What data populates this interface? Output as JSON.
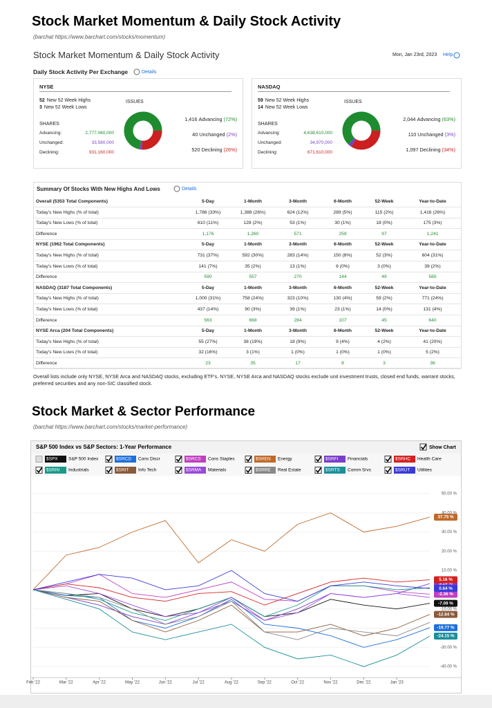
{
  "header": {
    "title": "Stock Market Momentum & Daily Stock Activity",
    "source": "(barchat https://www.barchart.com/stocks/momentum)"
  },
  "momentum": {
    "title": "Stock Market Momentum & Daily Stock Activity",
    "date": "Mon, Jan 23rd, 2023",
    "help": "Help",
    "exchange_heading": "Daily Stock Activity Per Exchange",
    "details": "Details"
  },
  "exchanges": [
    {
      "name": "NYSE",
      "highs": {
        "count": "52",
        "label": "New 52 Week Highs"
      },
      "lows": {
        "count": "3",
        "label": "New 52 Week Lows"
      },
      "shares_heading": "SHARES",
      "issues_heading": "ISSUES",
      "shares": [
        {
          "label": "Advancing:",
          "value": "2,777,060,000",
          "color": "#1e8c2e"
        },
        {
          "label": "Unchanged:",
          "value": "33,580,000",
          "color": "#7a3fbf"
        },
        {
          "label": "Declining:",
          "value": "931,160,000",
          "color": "#cc1f1f"
        }
      ],
      "issues": [
        {
          "count": "1,416",
          "label": "Advancing",
          "pct": 72,
          "pct_label": "(72%)",
          "color": "#1e8c2e"
        },
        {
          "count": "40",
          "label": "Unchanged",
          "pct": 2,
          "pct_label": "(2%)",
          "color": "#7a3fbf"
        },
        {
          "count": "520",
          "label": "Declining",
          "pct": 26,
          "pct_label": "(26%)",
          "color": "#cc1f1f"
        }
      ]
    },
    {
      "name": "NASDAQ",
      "highs": {
        "count": "59",
        "label": "New 52 Week Highs"
      },
      "lows": {
        "count": "14",
        "label": "New 52 Week Lows"
      },
      "shares_heading": "SHARES",
      "issues_heading": "ISSUES",
      "shares": [
        {
          "label": "Advancing:",
          "value": "4,638,610,000",
          "color": "#1e8c2e"
        },
        {
          "label": "Unchanged:",
          "value": "34,970,000",
          "color": "#7a3fbf"
        },
        {
          "label": "Declining:",
          "value": "671,610,000",
          "color": "#cc1f1f"
        }
      ],
      "issues": [
        {
          "count": "2,044",
          "label": "Advancing",
          "pct": 63,
          "pct_label": "(63%)",
          "color": "#1e8c2e"
        },
        {
          "count": "110",
          "label": "Unchanged",
          "pct": 3,
          "pct_label": "(3%)",
          "color": "#7a3fbf"
        },
        {
          "count": "1,097",
          "label": "Declining",
          "pct": 34,
          "pct_label": "(34%)",
          "color": "#cc1f1f"
        }
      ]
    }
  ],
  "summary": {
    "title": "Summary Of Stocks With New Highs And Lows",
    "details": "Details",
    "columns": [
      "5-Day",
      "1-Month",
      "3-Month",
      "6-Month",
      "52-Week",
      "Year-to-Date"
    ],
    "groups": [
      {
        "title": "Overall (5353 Total Components)",
        "rows": [
          [
            "Today's New Highs (% of total)",
            "1,786 (33%)",
            "1,388 (26%)",
            "624 (12%)",
            "289 (5%)",
            "115 (2%)",
            "1,416 (26%)"
          ],
          [
            "Today's New Lows (% of total)",
            "610 (11%)",
            "128 (2%)",
            "53 (1%)",
            "30 (1%)",
            "18 (0%)",
            "175 (3%)"
          ],
          [
            "Difference",
            "1,176",
            "1,260",
            "571",
            "259",
            "97",
            "1,241"
          ]
        ]
      },
      {
        "title": "NYSE (1962 Total Components)",
        "rows": [
          [
            "Today's New Highs (% of total)",
            "731 (37%)",
            "592 (30%)",
            "283 (14%)",
            "150 (8%)",
            "52 (3%)",
            "604 (31%)"
          ],
          [
            "Today's New Lows (% of total)",
            "141 (7%)",
            "35 (2%)",
            "13 (1%)",
            "6 (0%)",
            "3 (0%)",
            "39 (2%)"
          ],
          [
            "Difference",
            "590",
            "557",
            "270",
            "144",
            "49",
            "565"
          ]
        ]
      },
      {
        "title": "NASDAQ (3187 Total Components)",
        "rows": [
          [
            "Today's New Highs (% of total)",
            "1,000 (31%)",
            "758 (24%)",
            "323 (10%)",
            "130 (4%)",
            "59 (2%)",
            "771 (24%)"
          ],
          [
            "Today's New Lows (% of total)",
            "437 (14%)",
            "90 (3%)",
            "39 (1%)",
            "23 (1%)",
            "14 (0%)",
            "131 (4%)"
          ],
          [
            "Difference",
            "563",
            "668",
            "284",
            "107",
            "45",
            "640"
          ]
        ]
      },
      {
        "title": "NYSE Arca (204 Total Components)",
        "rows": [
          [
            "Today's New Highs (% of total)",
            "55 (27%)",
            "38 (19%)",
            "18 (9%)",
            "9 (4%)",
            "4 (2%)",
            "41 (20%)"
          ],
          [
            "Today's New Lows (% of total)",
            "32 (16%)",
            "3 (1%)",
            "1 (0%)",
            "1 (0%)",
            "1 (0%)",
            "5 (2%)"
          ],
          [
            "Difference",
            "23",
            "35",
            "17",
            "8",
            "3",
            "36"
          ]
        ]
      }
    ],
    "note": "Overall lists include only NYSE, NYSE Arca and NASDAQ stocks, excluding ETF's. NYSE, NYSE Arca and NASDAQ stocks exclude unit investment trusts, closed end funds, warrant stocks, preferred securities and any non-SIC classified stock."
  },
  "section2": {
    "title": "Stock Market & Sector Performance",
    "source": "(barchat https://www.barchart.com/stocks/market-performance)"
  },
  "chart_data": {
    "type": "line",
    "title": "S&P 500 Index vs S&P Sectors: 1-Year Performance",
    "show_chart": "Show Chart",
    "show_chart_checked": true,
    "grid": true,
    "categories": [
      "Feb '22",
      "Mar '22",
      "Apr '22",
      "May '22",
      "Jun '22",
      "Jul '22",
      "Aug '22",
      "Sep '22",
      "Oct '22",
      "Nov '22",
      "Dec '22",
      "Jan '23",
      null
    ],
    "ylim": [
      -45,
      55
    ],
    "yticks": [
      {
        "value": 50,
        "label": "50.00 %"
      },
      {
        "value": 40,
        "label": "40.00 %"
      },
      {
        "value": 30,
        "label": "30.00 %"
      },
      {
        "value": 20,
        "label": "20.00 %"
      },
      {
        "value": 10,
        "label": "10.00 %"
      },
      {
        "value": 0,
        "label": "0.00 %"
      },
      {
        "value": -10,
        "label": "-10.00 %"
      },
      {
        "value": -20,
        "label": "-20.00 %"
      },
      {
        "value": -30,
        "label": "-30.00 %"
      },
      {
        "value": -40,
        "label": "-40.00 %"
      }
    ],
    "series": [
      {
        "symbol": "$SPX",
        "name": "S&P 500 Index",
        "color": "#111111",
        "checked": false,
        "values": [
          0,
          -3,
          -2,
          -10,
          -14,
          -10,
          -4,
          -14,
          -12,
          -5,
          -8,
          -10,
          -7.09
        ],
        "value_labels": [
          null,
          null,
          null,
          null,
          null,
          null,
          null,
          null,
          null,
          null,
          null,
          null,
          "-7.09 %"
        ]
      },
      {
        "symbol": "$SRCD",
        "name": "Cons Discr",
        "color": "#1e6fd9",
        "checked": true,
        "values": [
          0,
          -3,
          -4,
          -16,
          -20,
          -14,
          -5,
          -18,
          -20,
          -24,
          -30,
          -26,
          -19.77
        ],
        "value_labels": [
          null,
          null,
          null,
          null,
          null,
          null,
          null,
          null,
          null,
          null,
          null,
          null,
          "-19.77 %"
        ]
      },
      {
        "symbol": "$SRCS",
        "name": "Cons Staples",
        "color": "#c03fc0",
        "checked": true,
        "values": [
          0,
          3,
          8,
          -2,
          -4,
          0,
          4,
          -5,
          -6,
          2,
          2,
          -1,
          -2.36
        ],
        "value_labels": [
          null,
          null,
          null,
          null,
          null,
          null,
          null,
          null,
          null,
          null,
          null,
          null,
          "-2.36 %"
        ]
      },
      {
        "symbol": "$SREN",
        "name": "Energy",
        "color": "#c0692a",
        "checked": true,
        "values": [
          0,
          18,
          22,
          30,
          36,
          14,
          26,
          20,
          34,
          40,
          30,
          33,
          37.75
        ],
        "value_labels": [
          null,
          null,
          null,
          null,
          null,
          null,
          null,
          null,
          null,
          null,
          null,
          null,
          "37.75 %"
        ]
      },
      {
        "symbol": "$SRFI",
        "name": "Financials",
        "color": "#7a3fc9",
        "checked": true,
        "values": [
          0,
          -4,
          -8,
          -14,
          -18,
          -12,
          -6,
          -16,
          -10,
          -2,
          -4,
          -2,
          3.19
        ],
        "value_labels": [
          null,
          null,
          null,
          null,
          null,
          null,
          null,
          null,
          null,
          null,
          null,
          null,
          "3.19 %"
        ]
      },
      {
        "symbol": "$SRHC",
        "name": "Health Care",
        "color": "#d62020",
        "checked": true,
        "values": [
          0,
          3,
          1,
          -4,
          -6,
          -2,
          -1,
          -8,
          -2,
          4,
          6,
          4,
          5.16
        ],
        "value_labels": [
          null,
          null,
          null,
          null,
          null,
          null,
          null,
          null,
          null,
          null,
          null,
          null,
          "5.16 %"
        ]
      },
      {
        "symbol": "$SRIN",
        "name": "Industrials",
        "color": "#1a9a8a",
        "checked": true,
        "values": [
          0,
          -2,
          -5,
          -12,
          -16,
          -10,
          -4,
          -14,
          -8,
          2,
          2,
          0,
          1
        ]
      },
      {
        "symbol": "$SRIT",
        "name": "Info Tech",
        "color": "#8a5a3a",
        "checked": true,
        "values": [
          0,
          -4,
          -6,
          -16,
          -22,
          -16,
          -8,
          -22,
          -22,
          -18,
          -24,
          -20,
          -12.84
        ],
        "value_labels": [
          null,
          null,
          null,
          null,
          null,
          null,
          null,
          null,
          null,
          null,
          null,
          null,
          "-12.84 %"
        ]
      },
      {
        "symbol": "$SRMA",
        "name": "Materials",
        "color": "#9a4ad9",
        "checked": true,
        "values": [
          0,
          2,
          -2,
          -8,
          -14,
          -12,
          -4,
          -16,
          -12,
          -2,
          -4,
          -2,
          -4
        ]
      },
      {
        "symbol": "$SRRE",
        "name": "Real Estate",
        "color": "#888888",
        "checked": true,
        "values": [
          0,
          -2,
          -4,
          -10,
          -18,
          -14,
          -6,
          -22,
          -26,
          -20,
          -22,
          -24,
          -17
        ]
      },
      {
        "symbol": "$SRTS",
        "name": "Comm Srvs",
        "color": "#1b8f9a",
        "checked": true,
        "values": [
          0,
          -5,
          -10,
          -22,
          -26,
          -22,
          -18,
          -30,
          -36,
          -34,
          -40,
          -34,
          -24.15
        ],
        "value_labels": [
          null,
          null,
          null,
          null,
          null,
          null,
          null,
          null,
          null,
          null,
          null,
          null,
          "-24.15 %"
        ]
      },
      {
        "symbol": "$SRUT",
        "name": "Utilities",
        "color": "#3a3ad9",
        "checked": true,
        "values": [
          0,
          4,
          8,
          6,
          0,
          2,
          10,
          -2,
          -6,
          2,
          4,
          2,
          0.64
        ],
        "value_labels": [
          null,
          null,
          null,
          null,
          null,
          null,
          null,
          null,
          null,
          null,
          null,
          null,
          "0.64 %"
        ]
      }
    ]
  }
}
